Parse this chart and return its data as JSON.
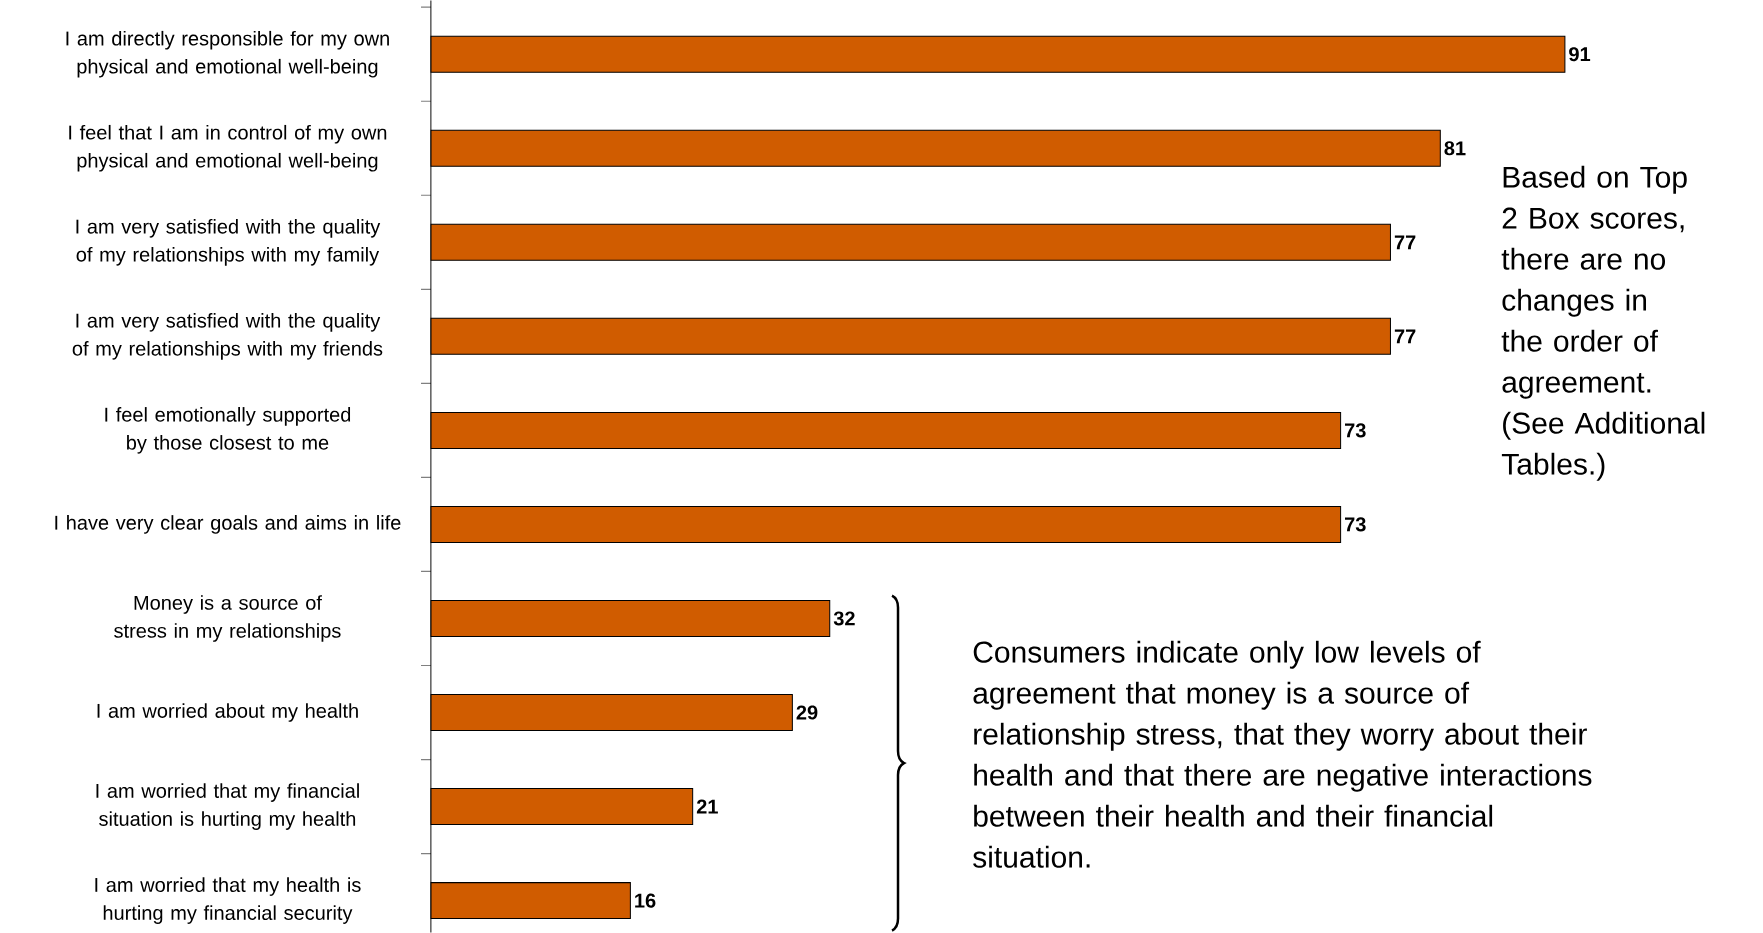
{
  "chart_data": {
    "type": "bar",
    "orientation": "horizontal",
    "data_labels": true,
    "color": "#d05c00",
    "categories": [
      "I am directly responsible for my own physical and emotional well-being",
      "I feel that I am in control of my own physical and emotional well-being",
      "I am very satisfied with the quality of my relationships with my family",
      "I am very satisfied with the quality of my relationships with my friends",
      "I feel emotionally supported by those closest to me",
      "I have very clear goals and aims in life",
      "Money is a source of stress in my relationships",
      "I am worried about my health",
      "I am worried that my financial situation is hurting my health",
      "I am worried that my health is hurting my financial security"
    ],
    "values": [
      91,
      81,
      77,
      77,
      73,
      73,
      32,
      29,
      21,
      16
    ],
    "annotations": [
      "Based on Top 2 Box scores, there are no changes in the order of agreement. (See Additional Tables.)",
      "Consumers indicate only low levels of agreement that money is a source of relationship stress, that they worry about their health and that there are negative interactions between their  health and their financial situation."
    ]
  }
}
